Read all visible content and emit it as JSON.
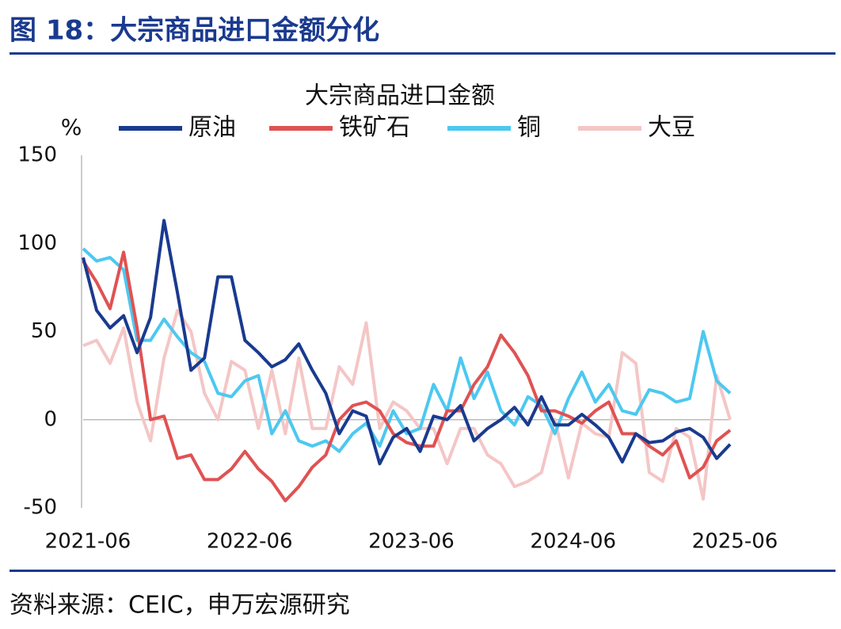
{
  "header": {
    "title": "图 18：大宗商品进口金额分化"
  },
  "chart_data": {
    "type": "line",
    "title": "大宗商品进口金额",
    "y_label": "%",
    "x": [
      "2021-06",
      "2021-07",
      "2021-08",
      "2021-09",
      "2021-10",
      "2021-11",
      "2021-12",
      "2022-01",
      "2022-02",
      "2022-03",
      "2022-04",
      "2022-05",
      "2022-06",
      "2022-07",
      "2022-08",
      "2022-09",
      "2022-10",
      "2022-11",
      "2022-12",
      "2023-01",
      "2023-02",
      "2023-03",
      "2023-04",
      "2023-05",
      "2023-06",
      "2023-07",
      "2023-08",
      "2023-09",
      "2023-10",
      "2023-11",
      "2023-12",
      "2024-01",
      "2024-02",
      "2024-03",
      "2024-04",
      "2024-05",
      "2024-06",
      "2024-07",
      "2024-08",
      "2024-09",
      "2024-10",
      "2024-11",
      "2024-12",
      "2025-01",
      "2025-02",
      "2025-03",
      "2025-04",
      "2025-05",
      "2025-06"
    ],
    "xticks": [
      "2021-06",
      "2022-06",
      "2023-06",
      "2024-06",
      "2025-06"
    ],
    "ylim": [
      -50,
      150
    ],
    "yticks": [
      -50,
      0,
      50,
      100,
      150
    ],
    "series": [
      {
        "name": "原油",
        "color": "#1a3a8f",
        "values": [
          92,
          62,
          52,
          59,
          38,
          58,
          113,
          72,
          28,
          35,
          81,
          81,
          45,
          38,
          30,
          34,
          43,
          28,
          15,
          -8,
          5,
          2,
          -25,
          -10,
          -5,
          -18,
          2,
          0,
          8,
          -12,
          -5,
          0,
          7,
          -3,
          13,
          -3,
          -3,
          3,
          -3,
          -10,
          -24,
          -8,
          -13,
          -12,
          -7,
          -5,
          -10,
          -22,
          -14
        ]
      },
      {
        "name": "铁矿石",
        "color": "#e05252",
        "values": [
          90,
          78,
          63,
          95,
          52,
          0,
          2,
          -22,
          -20,
          -34,
          -34,
          -28,
          -18,
          -28,
          -35,
          -46,
          -38,
          -27,
          -20,
          0,
          8,
          10,
          5,
          -8,
          -13,
          -15,
          -15,
          5,
          5,
          20,
          30,
          48,
          38,
          25,
          5,
          5,
          2,
          -2,
          5,
          10,
          -8,
          -8,
          -15,
          -20,
          -12,
          -33,
          -27,
          -12,
          -6
        ]
      },
      {
        "name": "铜",
        "color": "#4dc8f0",
        "values": [
          97,
          90,
          92,
          85,
          45,
          45,
          57,
          47,
          38,
          33,
          15,
          13,
          22,
          25,
          -8,
          5,
          -12,
          -15,
          -12,
          -18,
          -8,
          -2,
          -15,
          5,
          -8,
          -5,
          20,
          5,
          35,
          12,
          27,
          5,
          -3,
          13,
          8,
          -8,
          12,
          27,
          10,
          20,
          5,
          3,
          17,
          15,
          10,
          12,
          50,
          22,
          15
        ]
      },
      {
        "name": "大豆",
        "color": "#f4c6c6",
        "values": [
          42,
          45,
          32,
          52,
          10,
          -12,
          35,
          62,
          50,
          15,
          0,
          33,
          28,
          -5,
          28,
          -8,
          35,
          -5,
          -5,
          30,
          20,
          55,
          -5,
          10,
          5,
          -5,
          -5,
          -25,
          -5,
          -5,
          -20,
          -25,
          -38,
          -35,
          -30,
          0,
          -33,
          -2,
          -8,
          -10,
          38,
          32,
          -30,
          -35,
          -5,
          -10,
          -45,
          25,
          0
        ]
      }
    ]
  },
  "source": "资料来源：CEIC，申万宏源研究"
}
